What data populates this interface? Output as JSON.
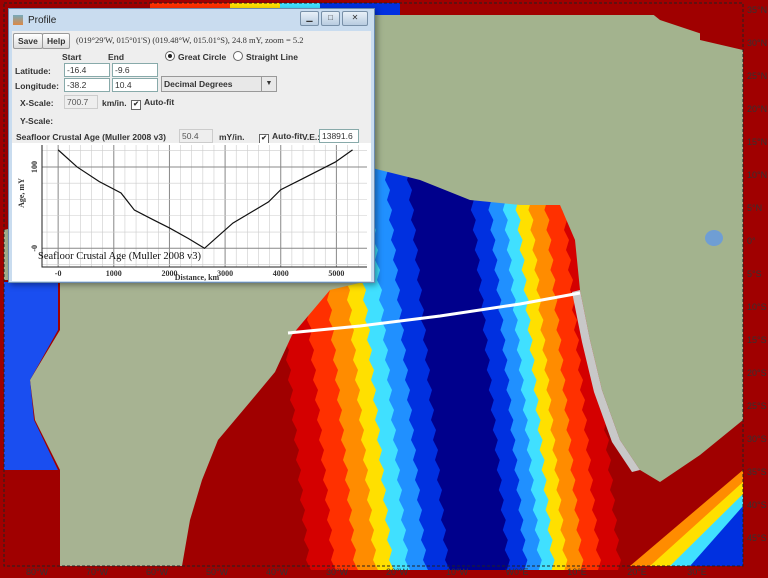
{
  "map": {
    "lat_labels": [
      "35°N",
      "30°N",
      "25°N",
      "20°N",
      "15°N",
      "10°N",
      "5°N",
      "0°",
      "5°S",
      "10°S",
      "15°S",
      "20°S",
      "25°S",
      "30°S",
      "35°S",
      "40°S",
      "45°S"
    ],
    "lon_labels": [
      "80°W",
      "70°W",
      "60°W",
      "50°W",
      "40°W",
      "30°W",
      "20°W",
      "10°W",
      "W0°E",
      "10°E",
      "20°E",
      "30°E"
    ],
    "colors": {
      "land": "#9fb08a",
      "ocean_old": "#a00000",
      "ridge": "#00008c",
      "profile_line": "#ffffff"
    }
  },
  "window": {
    "title": "Profile",
    "save": "Save",
    "help": "Help",
    "status": "(019°29'W, 015°01'S) (019.48°W, 015.01°S), 24.8 mY, zoom = 5.2",
    "start_label": "Start",
    "end_label": "End",
    "great_circle": "Great Circle",
    "straight_line": "Straight Line",
    "mode": "Great Circle",
    "latitude_label": "Latitude:",
    "lat_start": "-16.4",
    "lat_end": "-9.6",
    "longitude_label": "Longitude:",
    "lon_start": "-38.2",
    "lon_end": "10.4",
    "units": "Decimal Degrees",
    "xscale_label": "X-Scale:",
    "xscale": "700.7",
    "xscale_unit": "km/in.",
    "autofit": "Auto-fit",
    "yscale_label": "Y-Scale:",
    "layer": "Seafloor Crustal Age (Muller 2008 v3)",
    "yscale": "50.4",
    "yscale_unit": "mY/in.",
    "ve_label": "V.E.:",
    "ve": "13891.6"
  },
  "chart_data": {
    "type": "line",
    "title": "Seafloor Crustal Age (Muller 2008 v3)",
    "xlabel": "Distance, km",
    "ylabel": "Age, mY",
    "xlim": [
      -290,
      5550
    ],
    "ylim": [
      -23,
      127
    ],
    "xticks": [
      "-0",
      "1000",
      "2000",
      "3000",
      "4000",
      "5000"
    ],
    "yticks": [
      "-0",
      "100"
    ],
    "grid": true,
    "x": [
      0,
      340,
      740,
      1130,
      1370,
      1710,
      2000,
      2340,
      2630,
      3140,
      3780,
      4000,
      4350,
      4980,
      5290
    ],
    "y": [
      121,
      100,
      82,
      68,
      47,
      35,
      25,
      12,
      0,
      31,
      57,
      72,
      84,
      106,
      121
    ]
  }
}
